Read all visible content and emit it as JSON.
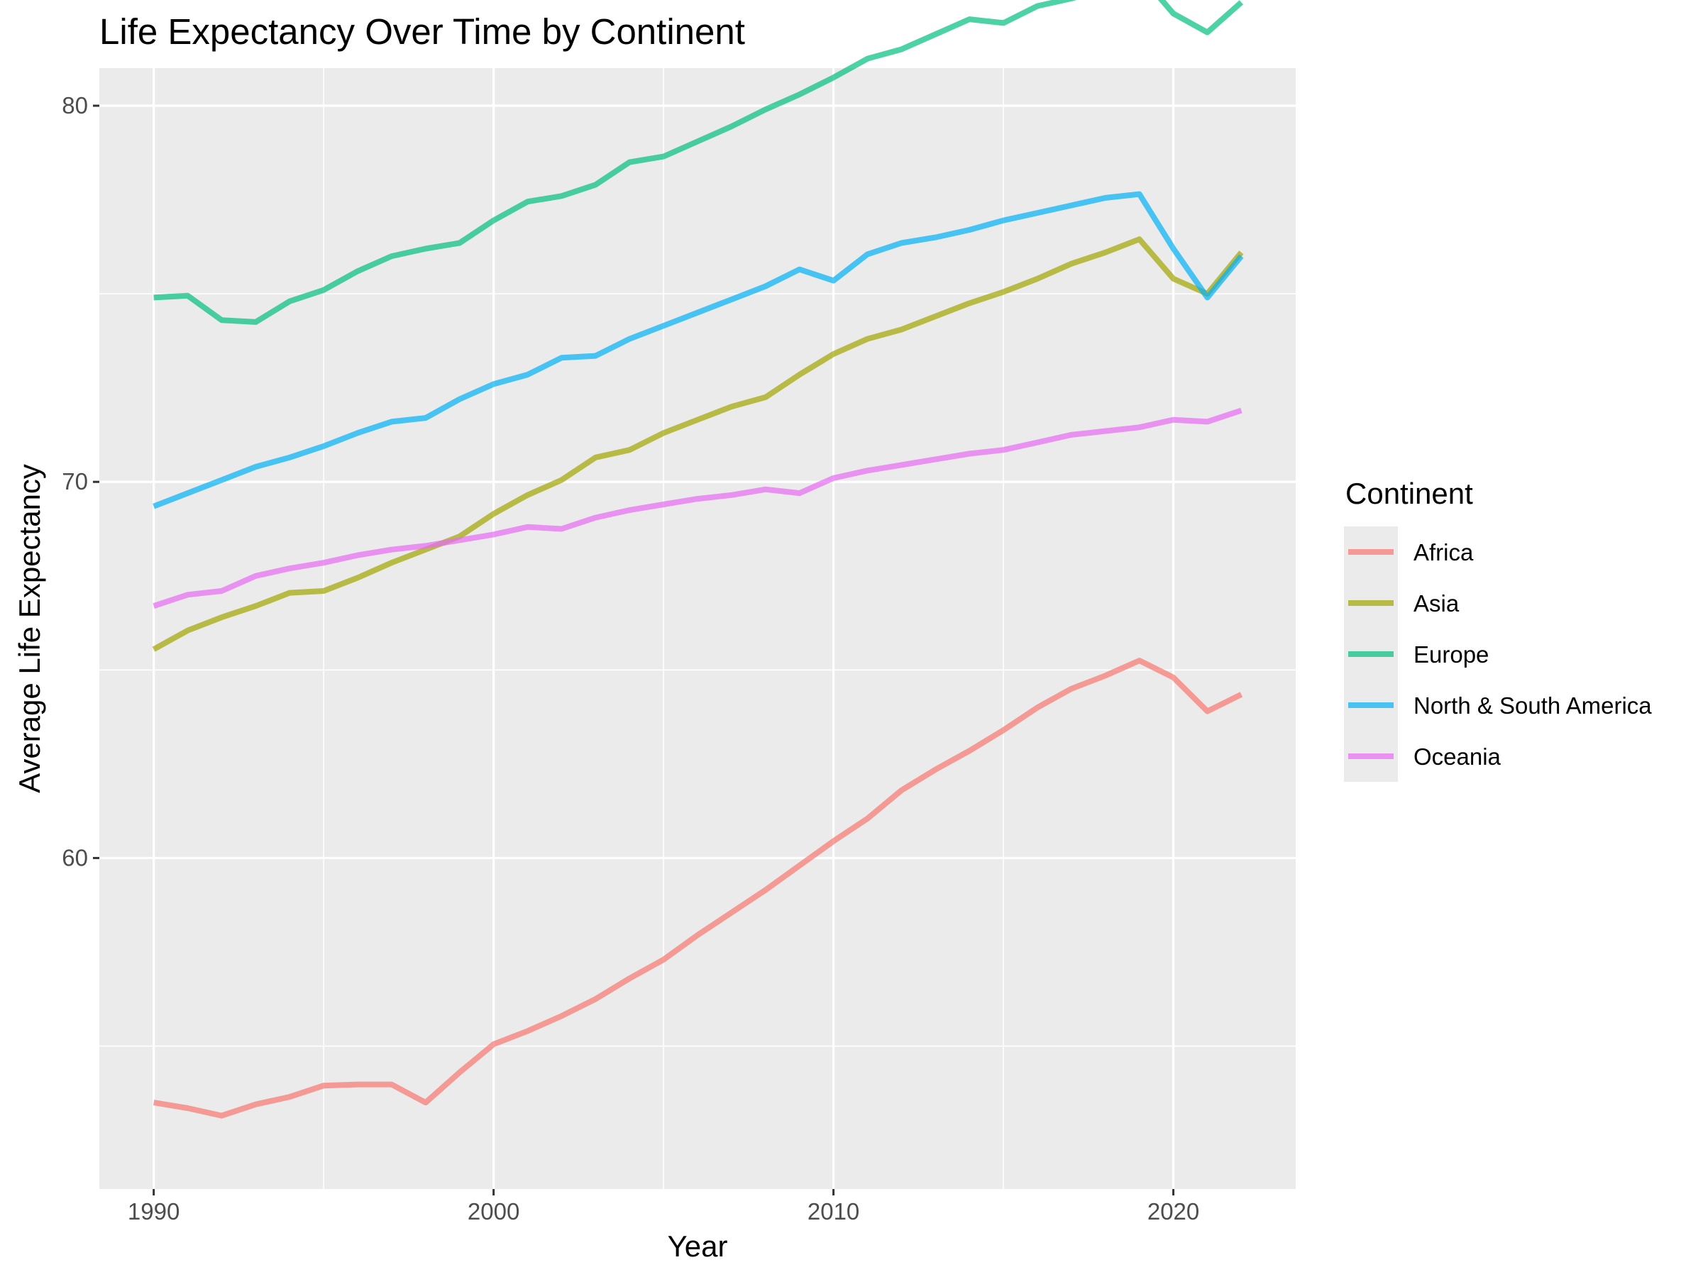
{
  "chart_data": {
    "type": "line",
    "title": "Life Expectancy Over Time by Continent",
    "xlabel": "Year",
    "ylabel": "Average Life Expectancy",
    "xlim": [
      1988.4,
      2023.6
    ],
    "ylim": [
      51.2,
      81.0
    ],
    "x_ticks": [
      1990,
      2000,
      2010,
      2020
    ],
    "y_ticks": [
      60,
      70,
      80
    ],
    "x_minor": [
      1995,
      2005,
      2015
    ],
    "y_minor": [
      55,
      65,
      75
    ],
    "grid": true,
    "legend": {
      "title": "Continent",
      "position": "right"
    },
    "x": [
      1990,
      1991,
      1992,
      1993,
      1994,
      1995,
      1996,
      1997,
      1998,
      1999,
      2000,
      2001,
      2002,
      2003,
      2004,
      2005,
      2006,
      2007,
      2008,
      2009,
      2010,
      2011,
      2012,
      2013,
      2014,
      2015,
      2016,
      2017,
      2018,
      2019,
      2020,
      2021,
      2022
    ],
    "series": [
      {
        "name": "Africa",
        "color": "#F8766D",
        "values": [
          53.5,
          53.35,
          53.15,
          53.45,
          53.65,
          53.95,
          53.98,
          53.98,
          53.5,
          54.3,
          55.05,
          55.4,
          55.8,
          56.25,
          56.8,
          57.3,
          57.95,
          58.55,
          59.15,
          59.8,
          60.45,
          61.05,
          61.8,
          62.35,
          62.85,
          63.4,
          64.0,
          64.5,
          64.85,
          65.25,
          64.8,
          63.9,
          64.35
        ]
      },
      {
        "name": "Asia",
        "color": "#A3A500",
        "values": [
          65.55,
          66.05,
          66.4,
          66.7,
          67.05,
          67.1,
          67.45,
          67.85,
          68.2,
          68.55,
          69.15,
          69.65,
          70.05,
          70.65,
          70.85,
          71.3,
          71.65,
          72.0,
          72.25,
          72.85,
          73.4,
          73.8,
          74.05,
          74.4,
          74.75,
          75.05,
          75.4,
          75.8,
          76.1,
          76.45,
          75.4,
          75.0,
          76.1
        ]
      },
      {
        "name": "Europe",
        "color": "#00BF7D",
        "values": [
          74.9,
          74.95,
          74.3,
          74.25,
          74.8,
          75.1,
          75.6,
          76.0,
          76.2,
          76.35,
          76.95,
          77.45,
          77.6,
          77.9,
          78.5,
          78.65,
          79.05,
          79.45,
          79.9,
          80.3,
          80.75,
          81.25,
          81.5,
          81.9,
          82.3,
          82.2,
          82.65,
          82.85,
          83.1,
          83.5,
          82.45,
          81.95,
          82.75
        ]
      },
      {
        "name": "North & South America",
        "color": "#00B0F6",
        "values": [
          69.35,
          69.7,
          70.05,
          70.4,
          70.65,
          70.95,
          71.3,
          71.6,
          71.7,
          72.2,
          72.6,
          72.85,
          73.3,
          73.35,
          73.8,
          74.15,
          74.5,
          74.85,
          75.2,
          75.65,
          75.35,
          76.05,
          76.35,
          76.5,
          76.7,
          76.95,
          77.15,
          77.35,
          77.55,
          77.65,
          76.2,
          74.9,
          76.0
        ]
      },
      {
        "name": "Oceania",
        "color": "#E76BF3",
        "values": [
          66.7,
          67.0,
          67.1,
          67.5,
          67.7,
          67.85,
          68.05,
          68.2,
          68.3,
          68.45,
          68.6,
          68.8,
          68.75,
          69.05,
          69.25,
          69.4,
          69.55,
          69.65,
          69.8,
          69.7,
          70.1,
          70.3,
          70.45,
          70.6,
          70.75,
          70.85,
          71.05,
          71.25,
          71.35,
          71.45,
          71.65,
          71.6,
          71.9
        ]
      }
    ]
  }
}
